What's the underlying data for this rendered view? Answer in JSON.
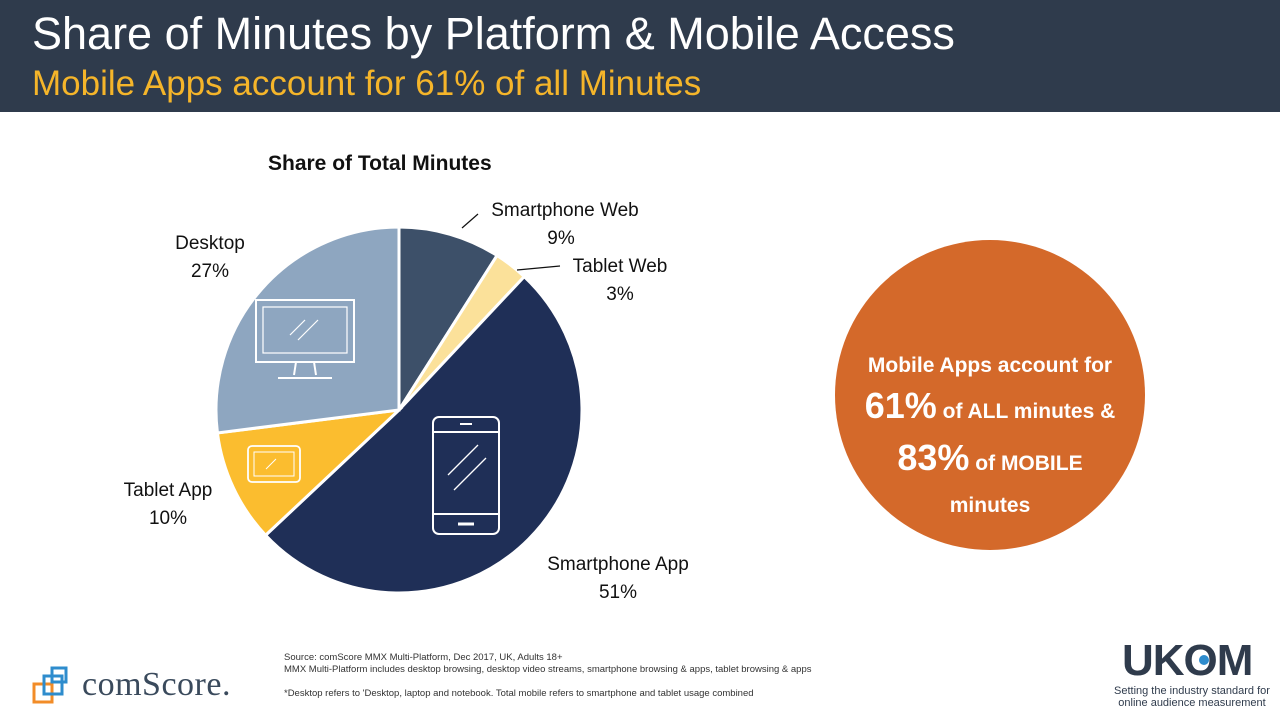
{
  "header": {
    "title": "Share of Minutes by Platform & Mobile Access",
    "subtitle": "Mobile Apps account for 61% of all Minutes"
  },
  "chart_data": {
    "type": "pie",
    "title": "Share of Total Minutes",
    "slices": [
      {
        "name": "Smartphone Web",
        "value": 9,
        "label": "9%",
        "color": "#3d5069"
      },
      {
        "name": "Tablet Web",
        "value": 3,
        "label": "3%",
        "color": "#fbe19a"
      },
      {
        "name": "Smartphone App",
        "value": 51,
        "label": "51%",
        "color": "#1f2f57"
      },
      {
        "name": "Tablet App",
        "value": 10,
        "label": "10%",
        "color": "#fbbd2f"
      },
      {
        "name": "Desktop",
        "value": 27,
        "label": "27%",
        "color": "#8ea6c0"
      }
    ],
    "legend": "none"
  },
  "callout": {
    "line1": "Mobile Apps account for",
    "big1": "61%",
    "rest1": " of ALL minutes &",
    "big2": "83%",
    "rest2": " of MOBILE",
    "line4": "minutes",
    "color": "#d4692a"
  },
  "footer": {
    "source_line1": "Source: comScore MMX Multi-Platform, Dec 2017, UK, Adults 18+",
    "source_line2": "MMX Multi-Platform includes desktop browsing, desktop video streams, smartphone browsing & apps, tablet browsing & apps",
    "note": "*Desktop refers to 'Desktop, laptop and notebook. Total mobile refers to smartphone and tablet usage combined",
    "comscore_logo_text": "comScore.",
    "ukom_logo_text": "UKOM",
    "ukom_tagline_1": "Setting the industry standard for",
    "ukom_tagline_2": "online audience measurement"
  }
}
